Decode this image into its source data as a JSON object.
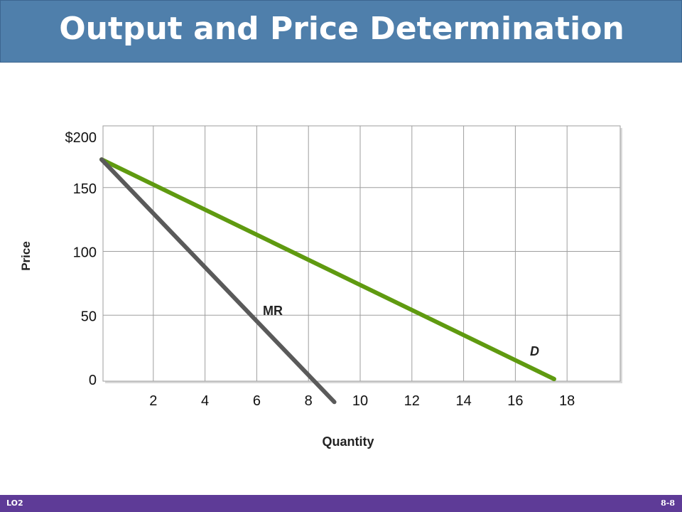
{
  "slide": {
    "title": "Output and Price Determination",
    "footer_left": "LO2",
    "footer_right": "8-8"
  },
  "colors": {
    "title_bar": "#4f7fab",
    "footer_bar": "#5e3b97",
    "demand": "#5f9a10",
    "mr": "#5a5a5a",
    "grid": "#9e9e9e"
  },
  "chart_data": {
    "type": "line",
    "title": "",
    "xlabel": "Quantity",
    "ylabel": "Price",
    "xlim": [
      0,
      20
    ],
    "ylim": [
      0,
      200
    ],
    "x_ticks": [
      "2",
      "4",
      "6",
      "8",
      "10",
      "12",
      "14",
      "16",
      "18"
    ],
    "y_ticks": [
      "0",
      "50",
      "100",
      "150",
      "$200"
    ],
    "grid": true,
    "series": [
      {
        "name": "D",
        "points": [
          [
            0,
            172
          ],
          [
            17.5,
            0
          ]
        ]
      },
      {
        "name": "MR",
        "points": [
          [
            0,
            172
          ],
          [
            9,
            -18
          ]
        ]
      }
    ]
  }
}
